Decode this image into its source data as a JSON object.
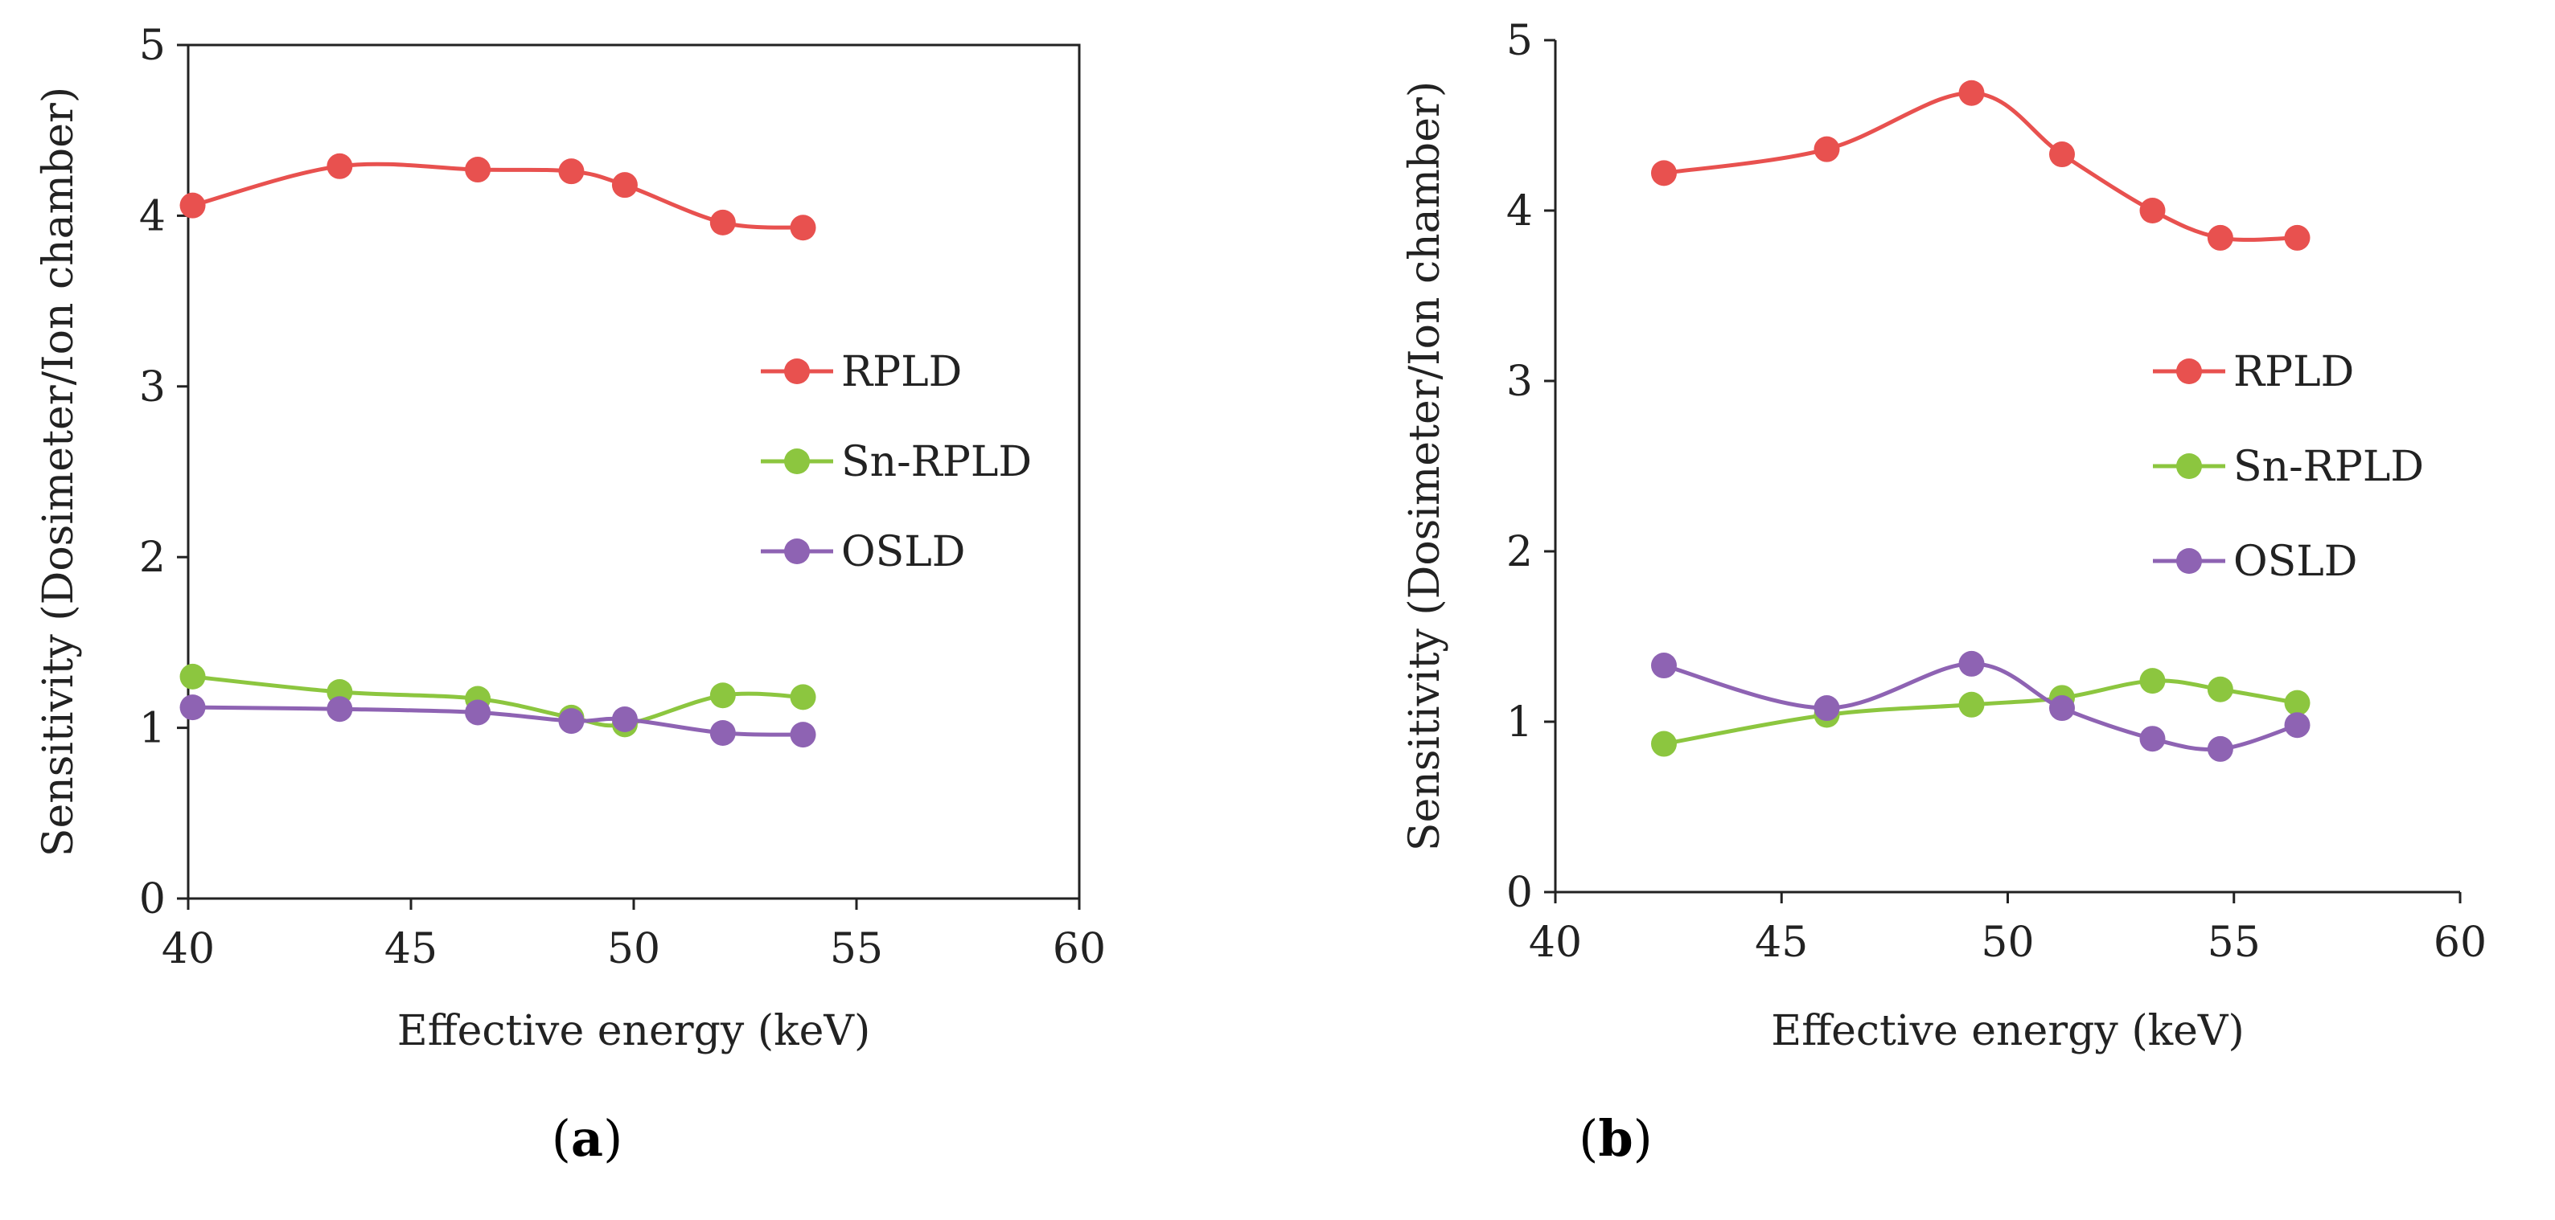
{
  "chart_data": [
    {
      "panel": "a",
      "type": "line",
      "title": "",
      "xlabel": "Effective energy (keV)",
      "ylabel": "Sensitivity (Dosimeter/Ion chamber)",
      "xlim": [
        40,
        60
      ],
      "ylim": [
        0,
        5
      ],
      "xticks": [
        40,
        45,
        50,
        55,
        60
      ],
      "yticks": [
        0,
        1,
        2,
        3,
        4,
        5
      ],
      "grid": false,
      "legend_position": "right",
      "series": [
        {
          "name": "RPLD",
          "color": "#e8514f",
          "x": [
            40.1,
            43.4,
            46.5,
            48.6,
            49.8,
            52.0,
            53.8
          ],
          "y": [
            4.06,
            4.29,
            4.27,
            4.26,
            4.18,
            3.96,
            3.93
          ]
        },
        {
          "name": "Sn-RPLD",
          "color": "#8cc63f",
          "x": [
            40.1,
            43.4,
            46.5,
            48.6,
            49.8,
            52.0,
            53.8
          ],
          "y": [
            1.3,
            1.21,
            1.17,
            1.06,
            1.02,
            1.19,
            1.18
          ]
        },
        {
          "name": "OSLD",
          "color": "#8e63b3",
          "x": [
            40.1,
            43.4,
            46.5,
            48.6,
            49.8,
            52.0,
            53.8
          ],
          "y": [
            1.12,
            1.11,
            1.09,
            1.04,
            1.05,
            0.97,
            0.96
          ]
        }
      ]
    },
    {
      "panel": "b",
      "type": "line",
      "title": "",
      "xlabel": "Effective energy (keV)",
      "ylabel": "Sensitivity (Dosimeter/Ion chamber)",
      "xlim": [
        40,
        60
      ],
      "ylim": [
        0,
        5
      ],
      "xticks": [
        40,
        45,
        50,
        55,
        60
      ],
      "yticks": [
        0,
        1,
        2,
        3,
        4,
        5
      ],
      "grid": false,
      "legend_position": "right",
      "series": [
        {
          "name": "RPLD",
          "color": "#e8514f",
          "x": [
            42.4,
            46.0,
            49.2,
            51.2,
            53.2,
            54.7,
            56.4
          ],
          "y": [
            4.22,
            4.36,
            4.69,
            4.33,
            4.0,
            3.84,
            3.84
          ]
        },
        {
          "name": "Sn-RPLD",
          "color": "#8cc63f",
          "x": [
            42.4,
            46.0,
            49.2,
            51.2,
            53.2,
            54.7,
            56.4
          ],
          "y": [
            0.87,
            1.04,
            1.1,
            1.14,
            1.24,
            1.19,
            1.11
          ]
        },
        {
          "name": "OSLD",
          "color": "#8e63b3",
          "x": [
            42.4,
            46.0,
            49.2,
            51.2,
            53.2,
            54.7,
            56.4
          ],
          "y": [
            1.33,
            1.08,
            1.34,
            1.08,
            0.9,
            0.84,
            0.98
          ]
        }
      ]
    }
  ],
  "captions": {
    "a": {
      "open": "(",
      "letter": "a",
      "close": ")"
    },
    "b": {
      "open": "(",
      "letter": "b",
      "close": ")"
    }
  }
}
